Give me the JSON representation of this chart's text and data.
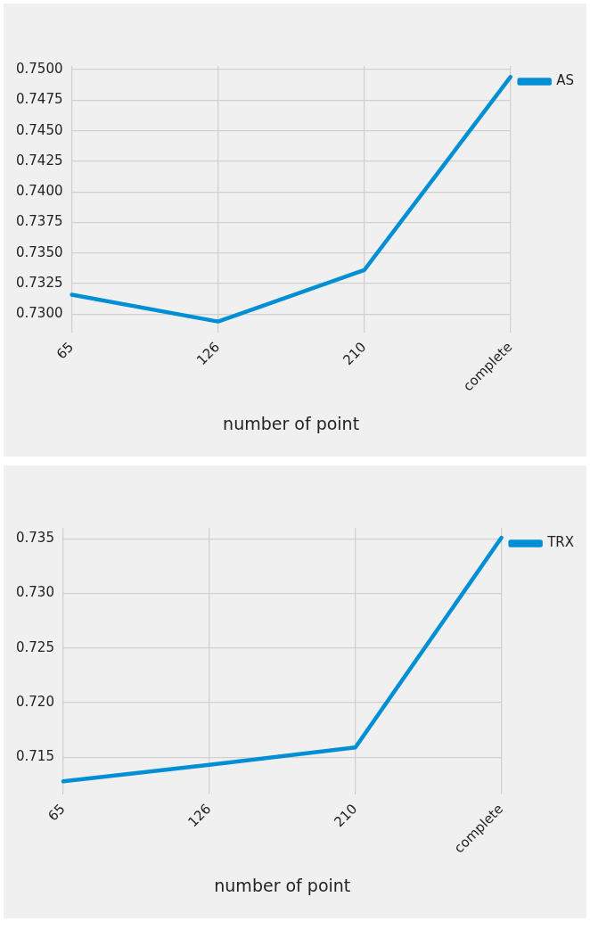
{
  "chart_data": [
    {
      "type": "line",
      "xlabel": "number of point",
      "categories": [
        "65",
        "126",
        "210",
        "complete"
      ],
      "series": [
        {
          "name": "AS",
          "color": "#008fd5",
          "values": [
            0.7316,
            0.7294,
            0.7336,
            0.7494
          ]
        }
      ],
      "ylim": [
        0.7285,
        0.7503
      ],
      "yticks": [
        {
          "value": 0.73,
          "label": "0.7300"
        },
        {
          "value": 0.7325,
          "label": "0.7325"
        },
        {
          "value": 0.735,
          "label": "0.7350"
        },
        {
          "value": 0.7375,
          "label": "0.7375"
        },
        {
          "value": 0.74,
          "label": "0.7400"
        },
        {
          "value": 0.7425,
          "label": "0.7425"
        },
        {
          "value": 0.745,
          "label": "0.7450"
        },
        {
          "value": 0.7475,
          "label": "0.7475"
        },
        {
          "value": 0.75,
          "label": "0.7500"
        }
      ],
      "grid": true,
      "legend": "top right",
      "marker": "none"
    },
    {
      "type": "line",
      "xlabel": "number of point",
      "categories": [
        "65",
        "126",
        "210",
        "complete"
      ],
      "series": [
        {
          "name": "TRX",
          "color": "#008fd5",
          "values": [
            0.7128,
            0.7143,
            0.7159,
            0.7351
          ]
        }
      ],
      "ylim": [
        0.7116,
        0.736
      ],
      "yticks": [
        {
          "value": 0.715,
          "label": "0.715"
        },
        {
          "value": 0.72,
          "label": "0.720"
        },
        {
          "value": 0.725,
          "label": "0.725"
        },
        {
          "value": 0.73,
          "label": "0.730"
        },
        {
          "value": 0.735,
          "label": "0.735"
        }
      ],
      "grid": true,
      "legend": "top right",
      "marker": "none"
    }
  ]
}
